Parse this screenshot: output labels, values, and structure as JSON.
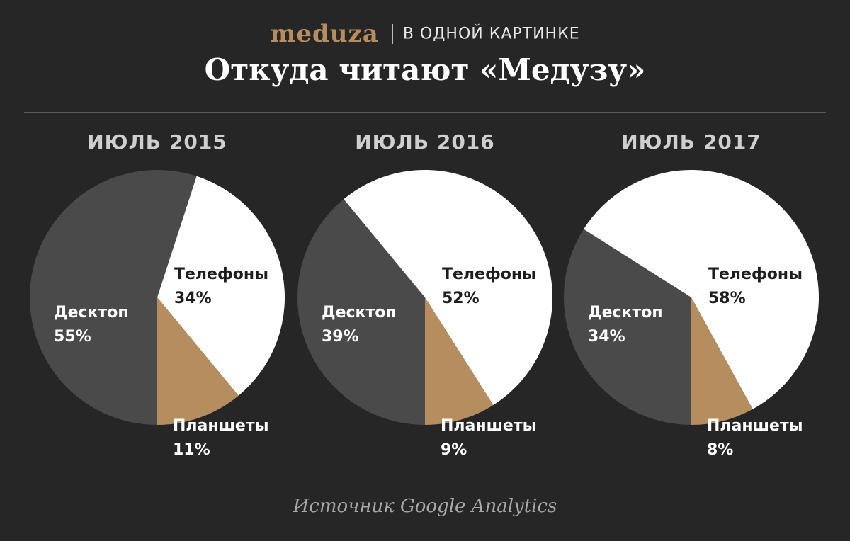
{
  "header": {
    "logo": "meduza",
    "rubric": "В ОДНОЙ КАРТИНКЕ",
    "title": "Откуда читают «Медузу»"
  },
  "source": "Источник Google Analytics",
  "colors": {
    "background": "#262626",
    "desktop": "#4a4a4a",
    "phones": "#ffffff",
    "tablets": "#b58d5e"
  },
  "chart_data": [
    {
      "type": "pie",
      "title": "ИЮЛЬ 2015",
      "slices": [
        {
          "name": "Телефоны",
          "value": 34,
          "label": "34%"
        },
        {
          "name": "Планшеты",
          "value": 11,
          "label": "11%"
        },
        {
          "name": "Десктоп",
          "value": 55,
          "label": "55%"
        }
      ]
    },
    {
      "type": "pie",
      "title": "ИЮЛЬ 2016",
      "slices": [
        {
          "name": "Телефоны",
          "value": 52,
          "label": "52%"
        },
        {
          "name": "Планшеты",
          "value": 9,
          "label": "9%"
        },
        {
          "name": "Десктоп",
          "value": 39,
          "label": "39%"
        }
      ]
    },
    {
      "type": "pie",
      "title": "ИЮЛЬ 2017",
      "slices": [
        {
          "name": "Телефоны",
          "value": 58,
          "label": "58%"
        },
        {
          "name": "Планшеты",
          "value": 8,
          "label": "8%"
        },
        {
          "name": "Десктоп",
          "value": 34,
          "label": "34%"
        }
      ]
    }
  ]
}
